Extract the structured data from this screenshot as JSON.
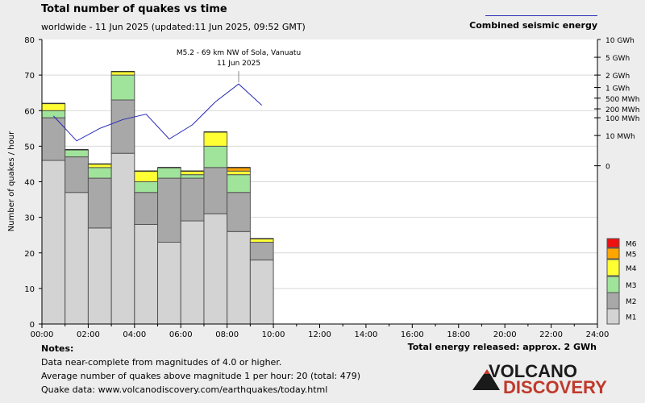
{
  "header": {
    "title": "Total number of quakes vs time",
    "subtitle": "worldwide - 11 Jun 2025 (updated:11 Jun 2025, 09:52 GMT)",
    "energy_legend": "Combined seismic energy"
  },
  "notes": {
    "heading": "Notes:",
    "line1": "Data near-complete from magnitudes of 4.0 or higher.",
    "line2": "Average number of quakes above magnitude 1 per hour: 20 (total: 479)",
    "line3": "Quake data: www.volcanodiscovery.com/earthquakes/today.html"
  },
  "total_energy": "Total energy released: approx. 2 GWh",
  "logo": {
    "word1": "VOLCANO",
    "word2": "DISCOVERY"
  },
  "chart_data": {
    "type": "bar",
    "stacked": true,
    "title": "Total number of quakes vs time",
    "ylabel": "Number of quakes / hour",
    "ylim": [
      0,
      80
    ],
    "y_ticks": [
      0,
      10,
      20,
      30,
      40,
      50,
      60,
      70,
      80
    ],
    "x_tick_labels": [
      "00:00",
      "02:00",
      "04:00",
      "06:00",
      "08:00",
      "10:00",
      "12:00",
      "14:00",
      "16:00",
      "18:00",
      "20:00",
      "22:00",
      "24:00"
    ],
    "categories": [
      "00:00",
      "01:00",
      "02:00",
      "03:00",
      "04:00",
      "05:00",
      "06:00",
      "07:00",
      "08:00",
      "09:00"
    ],
    "colors": {
      "M1": "#d3d3d3",
      "M2": "#a8a8a8",
      "M3": "#a0e39a",
      "M4": "#ffff33",
      "M5": "#ffa500",
      "M6": "#ee1111"
    },
    "series": [
      {
        "name": "M1",
        "values": [
          46,
          37,
          27,
          48,
          28,
          23,
          29,
          31,
          26,
          18
        ]
      },
      {
        "name": "M2",
        "values": [
          12,
          10,
          14,
          15,
          9,
          18,
          12,
          13,
          11,
          5
        ]
      },
      {
        "name": "M3",
        "values": [
          2,
          2,
          3,
          7,
          3,
          3,
          1,
          6,
          5,
          0
        ]
      },
      {
        "name": "M4",
        "values": [
          2,
          0,
          1,
          1,
          3,
          0,
          1,
          4,
          1,
          1
        ]
      },
      {
        "name": "M5",
        "values": [
          0,
          0,
          0,
          0,
          0,
          0,
          0,
          0,
          1,
          0
        ]
      },
      {
        "name": "M6",
        "values": [
          0,
          0,
          0,
          0,
          0,
          0,
          0,
          0,
          0,
          0
        ]
      }
    ],
    "legend": [
      "M6",
      "M5",
      "M4",
      "M3",
      "M2",
      "M1"
    ],
    "legend_placement": "right",
    "energy_axis_labels": [
      "10 GWh",
      "5 GWh",
      "2 GWh",
      "1 GWh",
      "500 MWh",
      "200 MWh",
      "100 MWh",
      "10 MWh",
      "0"
    ],
    "energy_axis_levels": [
      80,
      75,
      70,
      66.5,
      63.5,
      60.5,
      58,
      53,
      44.5
    ],
    "energy_line": {
      "name": "Combined seismic energy",
      "x_hours": [
        0.5,
        1.5,
        2.5,
        3.5,
        4.5,
        5.5,
        6.5,
        7.5,
        8.5,
        9.5
      ],
      "y_level": [
        58.5,
        51.5,
        55,
        57.5,
        59,
        52,
        56,
        62.5,
        67.5,
        61.5
      ]
    },
    "annotation": {
      "text1": "M5.2 - 69 km NW of Sola, Vanuatu",
      "text2": "11 Jun 2025",
      "hour": 8.5
    }
  }
}
